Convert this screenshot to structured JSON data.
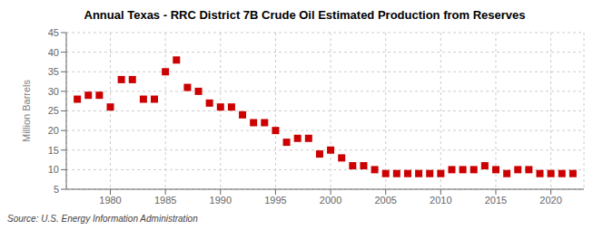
{
  "chart_data": {
    "type": "scatter",
    "title": "Annual Texas - RRC District 7B Crude Oil Estimated Production from Reserves",
    "ylabel": "Million Barrels",
    "annotations": [
      "Source: U.S. Energy Information Administration"
    ],
    "x": [
      1977,
      1978,
      1979,
      1980,
      1981,
      1982,
      1983,
      1984,
      1985,
      1986,
      1987,
      1988,
      1989,
      1990,
      1991,
      1992,
      1993,
      1994,
      1995,
      1996,
      1997,
      1998,
      1999,
      2000,
      2001,
      2002,
      2003,
      2004,
      2005,
      2006,
      2007,
      2008,
      2009,
      2010,
      2011,
      2012,
      2013,
      2014,
      2015,
      2016,
      2017,
      2018,
      2019,
      2020,
      2021,
      2022
    ],
    "values": [
      28,
      29,
      29,
      26,
      33,
      33,
      28,
      28,
      35,
      38,
      31,
      30,
      27,
      26,
      26,
      24,
      22,
      22,
      20,
      17,
      18,
      18,
      14,
      15,
      13,
      11,
      11,
      10,
      9,
      9,
      9,
      9,
      9,
      9,
      10,
      10,
      10,
      11,
      10,
      9,
      10,
      10,
      9,
      9,
      9,
      9
    ],
    "color": "#cc0000",
    "marker": "square",
    "xlim": [
      1976,
      2023
    ],
    "xticks": [
      1980,
      1985,
      1990,
      1995,
      2000,
      2005,
      2010,
      2015,
      2020
    ],
    "ylim": [
      5,
      45
    ],
    "yticks": [
      5,
      10,
      15,
      20,
      25,
      30,
      35,
      40,
      45
    ],
    "grid": true
  }
}
